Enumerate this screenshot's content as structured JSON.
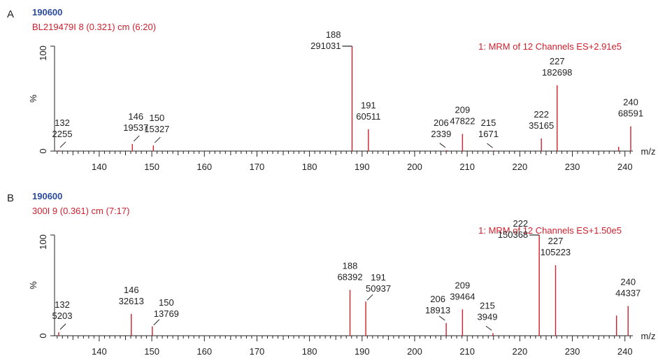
{
  "chart_data": [
    {
      "type": "bar",
      "panel_label": "A",
      "sample_id": "190600",
      "scan_info": "BL219479I 8 (0.321) cm (6:20)",
      "channel_info": "1: MRM of 12 Channels ES+2.91e5",
      "xlabel": "m/z",
      "ylabel": "%",
      "xlim": [
        131.5,
        241.5
      ],
      "ylim": [
        0,
        100
      ],
      "x_ticks": [
        140,
        150,
        160,
        170,
        180,
        190,
        200,
        210,
        220,
        230,
        240
      ],
      "y_ticks": [
        0,
        100
      ],
      "peaks": [
        {
          "x": 132.3,
          "y": 0.8,
          "mz": "132",
          "intensity": "2255"
        },
        {
          "x": 146.3,
          "y": 6.7,
          "mz": "146",
          "intensity": "19537"
        },
        {
          "x": 150.3,
          "y": 5.3,
          "mz": "150",
          "intensity": "15327"
        },
        {
          "x": 188.1,
          "y": 100,
          "mz": "188",
          "intensity": "291031"
        },
        {
          "x": 191.2,
          "y": 20.8,
          "mz": "191",
          "intensity": "60511"
        },
        {
          "x": 206.1,
          "y": 0.8,
          "mz": "206",
          "intensity": "2339"
        },
        {
          "x": 209.1,
          "y": 16.4,
          "mz": "209",
          "intensity": "47822"
        },
        {
          "x": 215.1,
          "y": 0.6,
          "mz": "215",
          "intensity": "1671"
        },
        {
          "x": 224.1,
          "y": 12.1,
          "mz": "222",
          "intensity": "35165"
        },
        {
          "x": 227.1,
          "y": 62.8,
          "mz": "227",
          "intensity": "182698"
        },
        {
          "x": 238.8,
          "y": 4.0
        },
        {
          "x": 241.1,
          "y": 23.6,
          "mz": "240",
          "intensity": "68591"
        }
      ]
    },
    {
      "type": "bar",
      "panel_label": "B",
      "sample_id": "190600",
      "scan_info": "300I 9 (0.361) cm (7:17)",
      "channel_info": "1: MRM of 12 Channels ES+1.50e5",
      "xlabel": "m/z",
      "ylabel": "%",
      "xlim": [
        131.5,
        241.5
      ],
      "ylim": [
        0,
        100
      ],
      "x_ticks": [
        140,
        150,
        160,
        170,
        180,
        190,
        200,
        210,
        220,
        230,
        240
      ],
      "y_ticks": [
        0,
        100
      ],
      "peaks": [
        {
          "x": 132.3,
          "y": 3.5,
          "mz": "132",
          "intensity": "5203"
        },
        {
          "x": 146.1,
          "y": 21.7,
          "mz": "146",
          "intensity": "32613"
        },
        {
          "x": 150.1,
          "y": 9.2,
          "mz": "150",
          "intensity": "13769"
        },
        {
          "x": 187.7,
          "y": 45.5,
          "mz": "188",
          "intensity": "68392"
        },
        {
          "x": 190.7,
          "y": 33.9,
          "mz": "191",
          "intensity": "50937"
        },
        {
          "x": 206.0,
          "y": 12.6,
          "mz": "206",
          "intensity": "18913"
        },
        {
          "x": 209.1,
          "y": 26.2,
          "mz": "209",
          "intensity": "39464"
        },
        {
          "x": 214.9,
          "y": 2.6,
          "mz": "215",
          "intensity": "3949"
        },
        {
          "x": 223.7,
          "y": 100,
          "mz": "222",
          "intensity": "150368"
        },
        {
          "x": 226.8,
          "y": 70.0,
          "mz": "227",
          "intensity": "105223"
        },
        {
          "x": 238.4,
          "y": 20.0
        },
        {
          "x": 240.6,
          "y": 29.5,
          "mz": "240",
          "intensity": "44337"
        }
      ]
    }
  ],
  "colors": {
    "peak": "#d0202e",
    "sample_id": "#2a4aa0",
    "scan_info": "#d0202e",
    "axis": "#222222",
    "text": "#222222"
  }
}
